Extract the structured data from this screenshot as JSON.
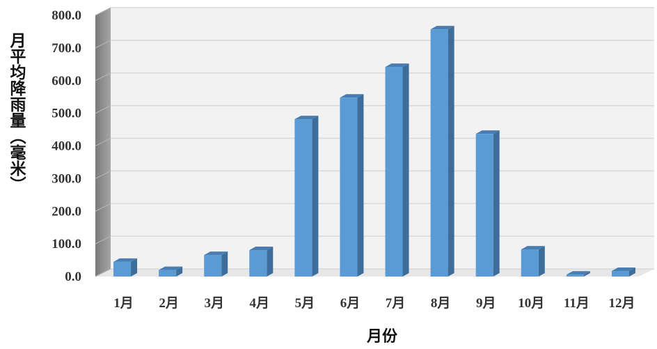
{
  "chart_data": {
    "type": "bar",
    "title": "",
    "xlabel": "月份",
    "ylabel": "月平均降雨量（毫米）",
    "categories": [
      "1月",
      "2月",
      "3月",
      "4月",
      "5月",
      "6月",
      "7月",
      "8月",
      "9月",
      "10月",
      "11月",
      "12月"
    ],
    "series": [
      {
        "values": [
          45,
          20,
          66,
          81,
          482,
          548,
          642,
          757,
          437,
          83,
          6,
          17
        ]
      }
    ],
    "ylim": [
      0,
      800
    ],
    "yticks": [
      "0.0",
      "100.0",
      "200.0",
      "300.0",
      "400.0",
      "500.0",
      "600.0",
      "700.0",
      "800.0"
    ],
    "grid": true,
    "legend": "none",
    "colors": {
      "bar_front": "#5b9bd5",
      "bar_side": "#3d6d9a",
      "bar_top": "#4a7eb0",
      "grid": "#d9d9d9",
      "wall": "#f2f2f2",
      "side_wall": "#8c8c8c"
    }
  }
}
